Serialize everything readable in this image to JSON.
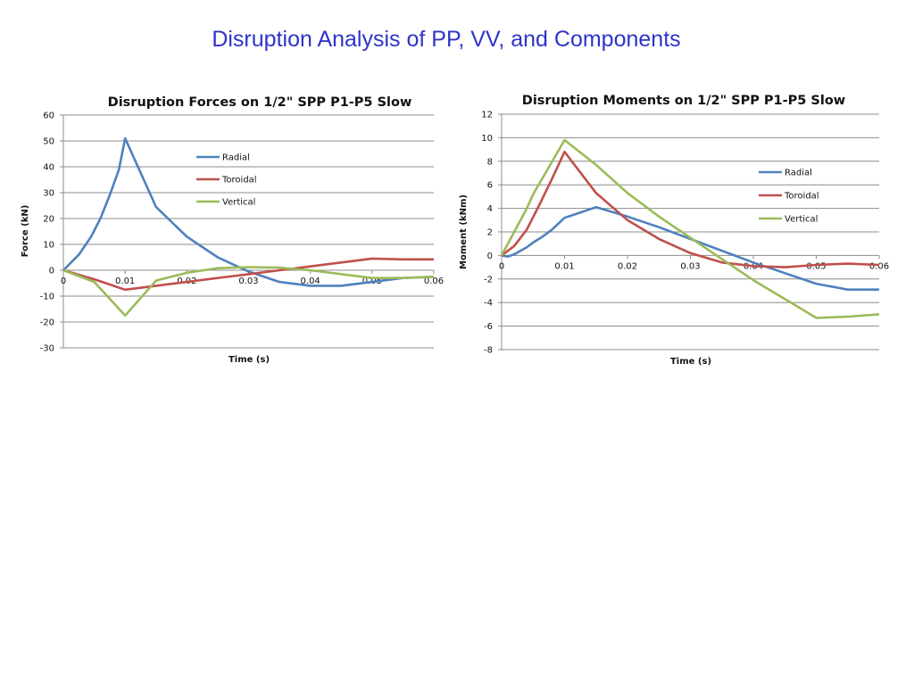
{
  "page": {
    "title": "Disruption Analysis of PP, VV, and Components"
  },
  "colors": {
    "radial": "#4f81bd",
    "toroidal": "#c0504d",
    "vertical": "#9bbb59",
    "grid": "#8c8c8c",
    "title": "#2e34c8"
  },
  "chart_data": [
    {
      "type": "line",
      "title": "Disruption Forces on 1/2\" SPP P1-P5 Slow",
      "xlabel": "Time (s)",
      "ylabel": "Force (kN)",
      "xlim": [
        0,
        0.06
      ],
      "ylim": [
        -30,
        60
      ],
      "xticks": [
        "0",
        "0.01",
        "0.02",
        "0.03",
        "0.04",
        "0.05",
        "0.06"
      ],
      "yticks": [
        "-30",
        "-20",
        "-10",
        "0",
        "10",
        "20",
        "30",
        "40",
        "50",
        "60"
      ],
      "legend": "right-inside-top",
      "grid": true,
      "series": [
        {
          "name": "Radial",
          "x": [
            0,
            0.0025,
            0.0045,
            0.006,
            0.0075,
            0.009,
            0.01,
            0.015,
            0.02,
            0.025,
            0.03,
            0.035,
            0.04,
            0.045,
            0.05,
            0.055,
            0.06
          ],
          "y": [
            0,
            6,
            13,
            20,
            29,
            39,
            51,
            24.5,
            13,
            5,
            -0.5,
            -4.5,
            -6,
            -6,
            -4.5,
            -3,
            -2.5
          ]
        },
        {
          "name": "Toroidal",
          "x": [
            0,
            0.005,
            0.01,
            0.015,
            0.02,
            0.025,
            0.03,
            0.035,
            0.04,
            0.045,
            0.05,
            0.055,
            0.06
          ],
          "y": [
            0,
            -3.5,
            -7.5,
            -6,
            -4.5,
            -3,
            -1.5,
            0,
            1.5,
            3,
            4.5,
            4.2,
            4.2
          ]
        },
        {
          "name": "Vertical",
          "x": [
            0,
            0.005,
            0.01,
            0.015,
            0.02,
            0.025,
            0.03,
            0.035,
            0.04,
            0.045,
            0.05,
            0.055,
            0.06
          ],
          "y": [
            0,
            -4.5,
            -17.5,
            -4,
            -1,
            0.8,
            1.2,
            1,
            0,
            -1.5,
            -3,
            -3,
            -2.5
          ]
        }
      ]
    },
    {
      "type": "line",
      "title": "Disruption Moments on 1/2\" SPP P1-P5 Slow",
      "xlabel": "Time (s)",
      "ylabel": "Moment (kNm)",
      "xlim": [
        0,
        0.06
      ],
      "ylim": [
        -8,
        12
      ],
      "xticks": [
        "0",
        "0.01",
        "0.02",
        "0.03",
        "0.04",
        "0.05",
        "0.06"
      ],
      "yticks": [
        "-8",
        "-6",
        "-4",
        "-2",
        "0",
        "2",
        "4",
        "6",
        "8",
        "10",
        "12"
      ],
      "legend": "right",
      "grid": true,
      "series": [
        {
          "name": "Radial",
          "x": [
            0,
            0.001,
            0.002,
            0.003,
            0.004,
            0.005,
            0.0065,
            0.008,
            0.01,
            0.015,
            0.02,
            0.025,
            0.03,
            0.035,
            0.04,
            0.045,
            0.05,
            0.055,
            0.06
          ],
          "y": [
            0,
            -0.1,
            0.1,
            0.4,
            0.7,
            1.1,
            1.6,
            2.2,
            3.2,
            4.1,
            3.3,
            2.4,
            1.4,
            0.4,
            -0.6,
            -1.5,
            -2.4,
            -2.9,
            -2.9
          ]
        },
        {
          "name": "Toroidal",
          "x": [
            0,
            0.002,
            0.004,
            0.006,
            0.008,
            0.01,
            0.015,
            0.02,
            0.025,
            0.03,
            0.035,
            0.04,
            0.045,
            0.05,
            0.055,
            0.06
          ],
          "y": [
            0,
            0.8,
            2.2,
            4.3,
            6.5,
            8.8,
            5.3,
            3,
            1.4,
            0.2,
            -0.6,
            -0.9,
            -1,
            -0.8,
            -0.7,
            -0.8
          ]
        },
        {
          "name": "Vertical",
          "x": [
            0,
            0.002,
            0.004,
            0.005,
            0.0075,
            0.01,
            0.015,
            0.02,
            0.025,
            0.03,
            0.035,
            0.04,
            0.045,
            0.05,
            0.055,
            0.06
          ],
          "y": [
            0,
            2,
            4,
            5.2,
            7.5,
            9.8,
            7.7,
            5.3,
            3.3,
            1.5,
            -0.3,
            -2.1,
            -3.7,
            -5.3,
            -5.2,
            -5
          ]
        }
      ]
    }
  ]
}
